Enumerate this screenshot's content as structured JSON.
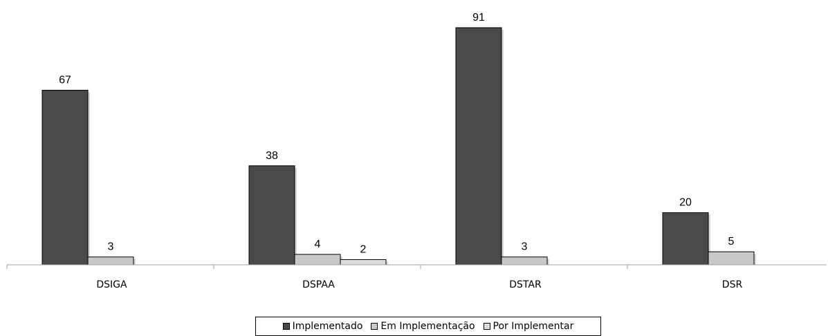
{
  "chart_data": {
    "type": "bar",
    "title": "",
    "xlabel": "",
    "ylabel": "",
    "categories": [
      "DSIGA",
      "DSPAA",
      "DSTAR",
      "DSR"
    ],
    "series": [
      {
        "name": "Implementado",
        "values": [
          67,
          38,
          91,
          20
        ],
        "labels": [
          "67",
          "38",
          "91",
          "20"
        ],
        "color": "#4a4a4a"
      },
      {
        "name": "Em Implementação",
        "values": [
          3,
          4,
          3,
          5
        ],
        "labels": [
          "3",
          "4",
          "3",
          "5"
        ],
        "color": "#c8c8c8"
      },
      {
        "name": "Por Implementar",
        "values": [
          0,
          2,
          0,
          0
        ],
        "labels": [
          "",
          "2",
          "",
          ""
        ],
        "color": "#dcdcdc"
      }
    ],
    "ylim": [
      0,
      91
    ],
    "grid": false,
    "legend": "bottom"
  }
}
